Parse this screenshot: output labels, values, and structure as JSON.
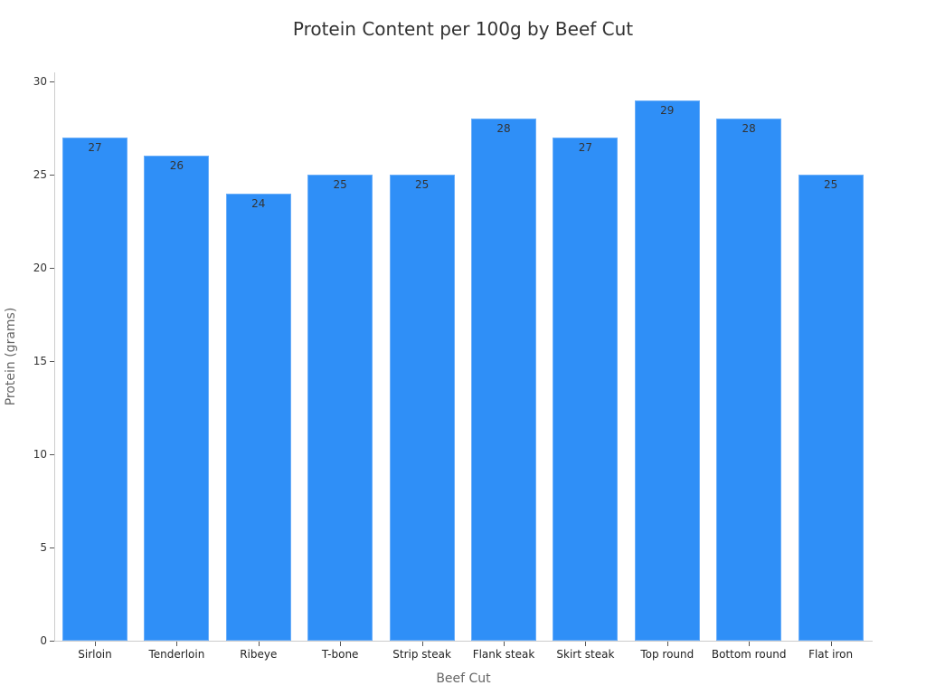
{
  "chart_data": {
    "type": "bar",
    "title": "Protein Content per 100g by Beef Cut",
    "xlabel": "Beef Cut",
    "ylabel": "Protein (grams)",
    "categories": [
      "Sirloin",
      "Tenderloin",
      "Ribeye",
      "T-bone",
      "Strip steak",
      "Flank steak",
      "Skirt steak",
      "Top round",
      "Bottom round",
      "Flat iron"
    ],
    "values": [
      27,
      26,
      24,
      25,
      25,
      28,
      27,
      29,
      28,
      25
    ],
    "ylim": [
      0,
      30
    ],
    "yticks": [
      0,
      5,
      10,
      15,
      20,
      25,
      30
    ],
    "grid": false,
    "legend": null,
    "bar_color": "#2f8ff7",
    "data_labels": true
  }
}
